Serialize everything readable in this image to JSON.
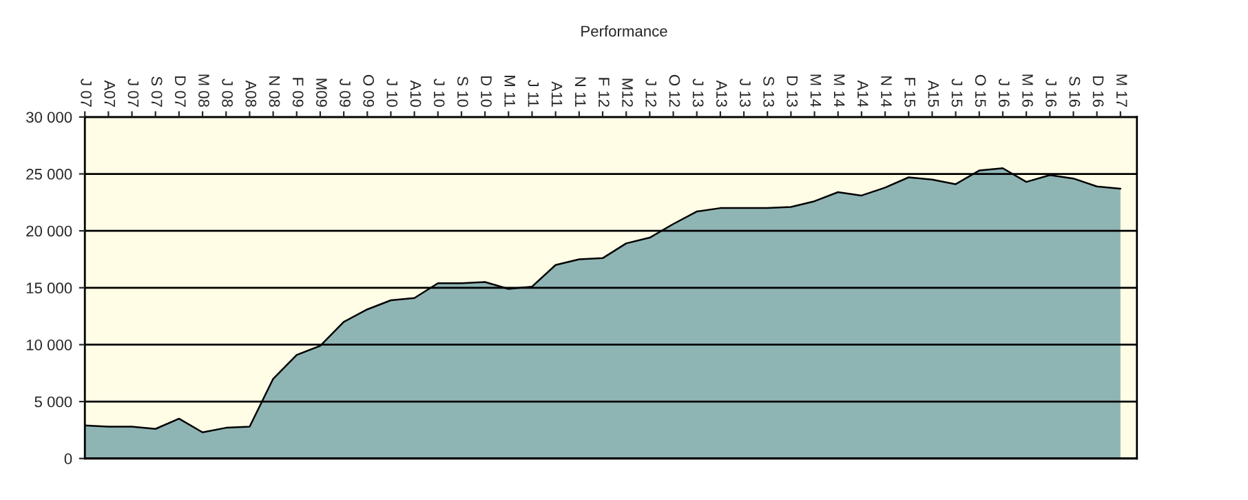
{
  "chart_data": {
    "type": "area",
    "title": "Performance",
    "categories": [
      "J 07",
      "A07",
      "J 07",
      "S 07",
      "D 07",
      "M 08",
      "J 08",
      "A08",
      "N 08",
      "F 09",
      "M09",
      "J 09",
      "O 09",
      "J 10",
      "A10",
      "J 10",
      "S 10",
      "D 10",
      "M 11",
      "J 11",
      "A11",
      "N 11",
      "F 12",
      "M12",
      "J 12",
      "O 12",
      "J 13",
      "A13",
      "J 13",
      "S 13",
      "D 13",
      "M 14",
      "M 14",
      "A14",
      "N 14",
      "F 15",
      "A15",
      "J 15",
      "O 15",
      "J 16",
      "M 16",
      "J 16",
      "S 16",
      "D 16",
      "M 17"
    ],
    "series": [
      {
        "color": "#8fb4b4",
        "values": [
          2900,
          2800,
          2800,
          2600,
          3500,
          2300,
          2700,
          2800,
          7000,
          9100,
          9900,
          12000,
          13100,
          13900,
          14100,
          15400,
          15400,
          15500,
          14900,
          15100,
          17000,
          17500,
          17600,
          18900,
          19400,
          20600,
          21700,
          22000,
          22000,
          22000,
          22100,
          22600,
          23400,
          23100,
          23800,
          24700,
          24500,
          24100,
          25300,
          25500,
          24300,
          24900,
          24600,
          23900,
          23700
        ]
      }
    ],
    "ylim": [
      0,
      30000
    ],
    "yticks": [
      0,
      {
        "value": 5000,
        "label": "5 000"
      },
      {
        "value": 10000,
        "label": "10 000"
      },
      {
        "value": 15000,
        "label": "15 000"
      },
      {
        "value": 20000,
        "label": "20 000"
      },
      {
        "value": 25000,
        "label": "25 000"
      },
      {
        "value": 30000,
        "label": "30 000"
      }
    ],
    "grid": "y"
  }
}
